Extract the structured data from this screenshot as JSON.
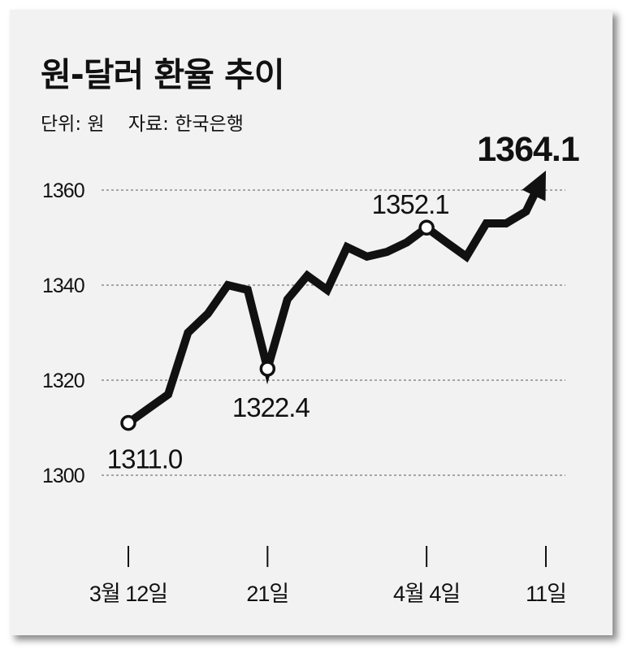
{
  "header": {
    "title": "원-달러 환율 추이",
    "unit": "단위: 원",
    "source": "자료: 한국은행"
  },
  "chart_data": {
    "type": "line",
    "title": "원-달러 환율 추이",
    "xlabel": "",
    "ylabel": "",
    "ylim": [
      1300,
      1364.1
    ],
    "yticks": [
      1300,
      1320,
      1340,
      1360
    ],
    "grid": true,
    "legend": "none",
    "x_ticks": [
      {
        "index": 0,
        "label": "3월 12일"
      },
      {
        "index": 7,
        "label": "21일"
      },
      {
        "index": 15,
        "label": "4월 4일"
      },
      {
        "index": 21,
        "label": "11일"
      }
    ],
    "series": [
      {
        "values": [
          1311.0,
          1314.0,
          1317.0,
          1330.0,
          1334.0,
          1340.0,
          1339.0,
          1322.4,
          1337.0,
          1342.0,
          1339.0,
          1348.0,
          1346.0,
          1347.0,
          1349.0,
          1352.1,
          1349.0,
          1346.0,
          1353.0,
          1353.0,
          1355.5,
          1364.1
        ]
      }
    ],
    "annotations": [
      {
        "index": 0,
        "text": "1311.0"
      },
      {
        "index": 7,
        "text": "1322.4"
      },
      {
        "index": 15,
        "text": "1352.1"
      },
      {
        "index": 21,
        "text": "1364.1",
        "emphasis": true
      }
    ],
    "colors": {
      "line": "#111111",
      "grid": "#777777",
      "marker_fill": "#ffffff",
      "background": "#f2f2f2"
    }
  }
}
